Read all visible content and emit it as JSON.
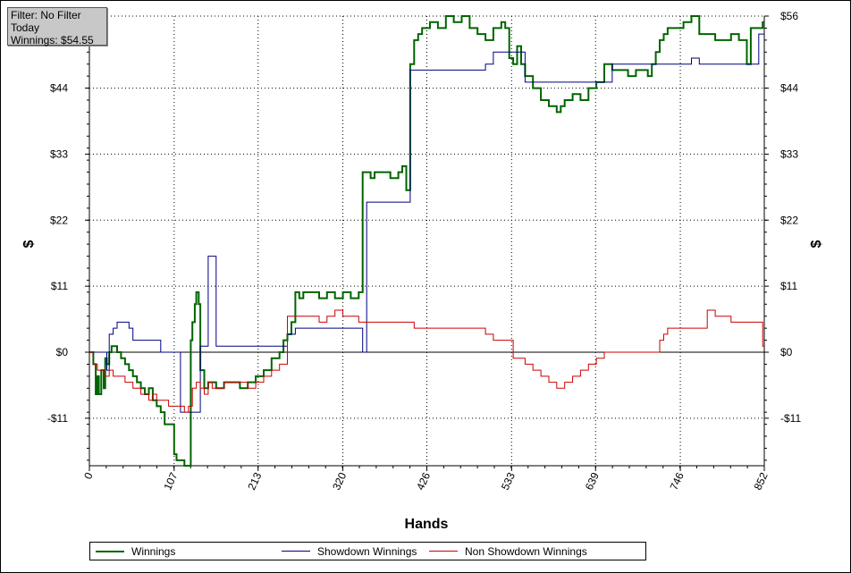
{
  "info": {
    "filter": "Filter: No Filter",
    "period": "Today",
    "winnings": "Winnings: $54.55"
  },
  "chart_data": {
    "type": "line",
    "title": "",
    "xlabel": "Hands",
    "ylabel_left": "$",
    "ylabel_right": "$",
    "xlim": [
      0,
      852
    ],
    "ylim": [
      -19,
      56
    ],
    "x_ticks": [
      0,
      107,
      213,
      320,
      426,
      533,
      639,
      746,
      852
    ],
    "x_tick_labels": [
      "0",
      "107",
      "213",
      "320",
      "426",
      "533",
      "639",
      "746",
      "852"
    ],
    "y_ticks": [
      56,
      44,
      33,
      22,
      11,
      0,
      -11
    ],
    "y_tick_labels": [
      "$56",
      "$44",
      "$33",
      "$22",
      "$11",
      "$0",
      "-$11"
    ],
    "grid": true,
    "legend_position": "bottom",
    "series": [
      {
        "name": "Winnings",
        "color": "#006400",
        "x": [
          0,
          5,
          8,
          10,
          12,
          15,
          18,
          20,
          22,
          25,
          28,
          30,
          35,
          40,
          45,
          50,
          55,
          60,
          65,
          70,
          75,
          80,
          85,
          90,
          95,
          107,
          110,
          115,
          120,
          125,
          128,
          130,
          133,
          135,
          138,
          140,
          145,
          150,
          160,
          170,
          180,
          190,
          200,
          210,
          220,
          230,
          240,
          245,
          250,
          255,
          260,
          265,
          270,
          280,
          290,
          300,
          310,
          320,
          330,
          340,
          345,
          350,
          355,
          360,
          370,
          380,
          390,
          395,
          400,
          405,
          410,
          415,
          420,
          430,
          440,
          450,
          460,
          470,
          480,
          490,
          500,
          510,
          520,
          525,
          530,
          535,
          540,
          545,
          550,
          560,
          570,
          580,
          590,
          595,
          600,
          610,
          620,
          630,
          640,
          650,
          660,
          670,
          680,
          690,
          700,
          705,
          710,
          715,
          720,
          725,
          730,
          740,
          750,
          760,
          770,
          780,
          790,
          800,
          810,
          820,
          830,
          835,
          840,
          845,
          850,
          852
        ],
        "y": [
          0,
          -2,
          -7,
          -4,
          -7,
          -3,
          -6,
          -1,
          -2,
          0,
          1,
          1,
          0,
          -1,
          -2,
          -3,
          -4,
          -5,
          -6,
          -7,
          -6,
          -8,
          -9,
          -10,
          -12,
          -17,
          -18,
          -18,
          -19,
          -19,
          2,
          5,
          8,
          10,
          8,
          -3,
          -6,
          -5,
          -6,
          -5,
          -5,
          -6,
          -5,
          -4,
          -3,
          -1,
          0,
          2,
          3,
          5,
          10,
          9,
          10,
          10,
          9,
          10,
          9,
          10,
          9,
          10,
          30,
          30,
          29,
          30,
          30,
          29,
          30,
          31,
          27,
          48,
          52,
          53,
          54,
          55,
          54,
          56,
          55,
          56,
          54,
          53,
          52,
          54,
          55,
          54,
          49,
          48,
          51,
          48,
          46,
          44,
          42,
          41,
          40,
          41,
          42,
          43,
          42,
          44,
          45,
          48,
          47,
          47,
          46,
          47,
          47,
          46,
          48,
          50,
          52,
          53,
          54,
          54,
          55,
          56,
          53,
          53,
          52,
          52,
          53,
          52,
          48,
          54,
          54,
          54,
          55,
          55
        ]
      },
      {
        "name": "Showdown Winnings",
        "color": "#000080",
        "x": [
          0,
          20,
          22,
          25,
          30,
          35,
          40,
          50,
          55,
          60,
          65,
          85,
          90,
          95,
          100,
          107,
          115,
          120,
          130,
          140,
          150,
          160,
          175,
          190,
          200,
          210,
          220,
          230,
          235,
          240,
          245,
          250,
          260,
          270,
          280,
          300,
          320,
          340,
          345,
          350,
          355,
          360,
          380,
          400,
          405,
          410,
          420,
          440,
          460,
          480,
          500,
          505,
          510,
          520,
          530,
          540,
          545,
          550,
          560,
          580,
          600,
          620,
          640,
          650,
          660,
          680,
          700,
          720,
          750,
          760,
          770,
          780,
          800,
          820,
          830,
          840,
          845,
          850,
          852
        ],
        "y": [
          0,
          0,
          -3,
          3,
          4,
          5,
          5,
          4,
          2,
          2,
          2,
          2,
          0,
          0,
          0,
          0,
          -10,
          -10,
          -10,
          1,
          16,
          1,
          1,
          1,
          1,
          1,
          1,
          1,
          1,
          1,
          1,
          3,
          4,
          4,
          4,
          4,
          4,
          4,
          0,
          25,
          25,
          25,
          25,
          25,
          47,
          47,
          47,
          47,
          47,
          47,
          48,
          48,
          50,
          50,
          50,
          50,
          50,
          45,
          45,
          45,
          45,
          45,
          45,
          45,
          48,
          48,
          48,
          48,
          48,
          49,
          48,
          48,
          48,
          48,
          48,
          48,
          53,
          53,
          53
        ],
        "y_note": ""
      },
      {
        "name": "Non Showdown Winnings",
        "color": "#cc0000",
        "x": [
          0,
          5,
          10,
          15,
          20,
          25,
          30,
          35,
          40,
          45,
          50,
          55,
          60,
          65,
          70,
          75,
          80,
          85,
          90,
          95,
          100,
          107,
          115,
          120,
          125,
          130,
          135,
          140,
          145,
          150,
          155,
          160,
          170,
          180,
          190,
          200,
          210,
          220,
          230,
          240,
          250,
          260,
          270,
          280,
          290,
          300,
          310,
          320,
          330,
          340,
          350,
          360,
          370,
          380,
          390,
          400,
          410,
          420,
          430,
          440,
          450,
          460,
          470,
          480,
          490,
          500,
          510,
          520,
          530,
          535,
          540,
          550,
          560,
          570,
          580,
          590,
          600,
          610,
          620,
          630,
          640,
          650,
          660,
          670,
          680,
          690,
          700,
          710,
          720,
          725,
          730,
          740,
          750,
          760,
          770,
          780,
          790,
          800,
          810,
          820,
          830,
          840,
          845,
          850,
          852
        ],
        "y": [
          0,
          -2,
          -3,
          -3,
          -4,
          -3,
          -4,
          -4,
          -4,
          -5,
          -5,
          -6,
          -6,
          -7,
          -7,
          -8,
          -7,
          -8,
          -8,
          -8,
          -9,
          -9,
          -9,
          -10,
          -9,
          -6,
          -5,
          -6,
          -7,
          -5,
          -6,
          -6,
          -5,
          -5,
          -5,
          -6,
          -5,
          -4,
          -3,
          -2,
          6,
          6,
          6,
          6,
          5,
          6,
          7,
          6,
          6,
          5,
          5,
          5,
          5,
          5,
          5,
          5,
          4,
          4,
          4,
          4,
          4,
          4,
          4,
          4,
          4,
          3,
          2,
          2,
          2,
          -1,
          -1,
          -2,
          -3,
          -4,
          -5,
          -6,
          -5,
          -4,
          -3,
          -2,
          -1,
          0,
          0,
          0,
          0,
          0,
          0,
          0,
          2,
          3,
          4,
          4,
          4,
          4,
          4,
          7,
          6,
          6,
          5,
          5,
          5,
          5,
          5,
          1,
          1
        ]
      }
    ]
  }
}
